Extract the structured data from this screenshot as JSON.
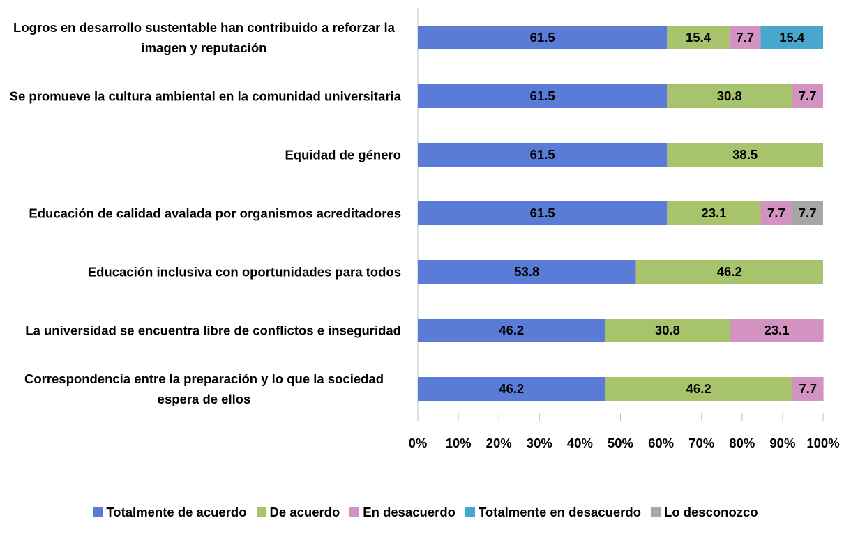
{
  "chart_data": {
    "type": "stacked_bar_horizontal",
    "categories": [
      "Logros en desarrollo sustentable han contribuido a reforzar la imagen y reputación",
      "Se promueve la cultura ambiental en la comunidad universitaria",
      "Equidad de género",
      "Educación de calidad avalada por organismos acreditadores",
      "Educación inclusiva con oportunidades para todos",
      "La universidad se encuentra libre de conflictos e inseguridad",
      "Correspondencia entre la preparación y lo que la sociedad espera de ellos"
    ],
    "series": [
      {
        "name": "Totalmente de acuerdo",
        "color": "#5b7cd6",
        "values": [
          61.5,
          61.5,
          61.5,
          61.5,
          53.8,
          46.2,
          46.2
        ]
      },
      {
        "name": "De acuerdo",
        "color": "#a7c46c",
        "values": [
          15.4,
          30.8,
          38.5,
          23.1,
          46.2,
          30.8,
          46.2
        ]
      },
      {
        "name": "En desacuerdo",
        "color": "#d393c0",
        "values": [
          7.7,
          7.7,
          null,
          7.7,
          null,
          23.1,
          7.7
        ]
      },
      {
        "name": "Totalmente en desacuerdo",
        "color": "#47a7cc",
        "values": [
          15.4,
          null,
          null,
          null,
          null,
          null,
          null
        ]
      },
      {
        "name": "Lo desconozco",
        "color": "#a6a6a6",
        "values": [
          null,
          null,
          null,
          7.7,
          null,
          null,
          null
        ]
      }
    ],
    "xlim": [
      0,
      100
    ],
    "xticks": [
      {
        "value": 0,
        "label": "0%"
      },
      {
        "value": 10,
        "label": "10%"
      },
      {
        "value": 20,
        "label": "20%"
      },
      {
        "value": 30,
        "label": "30%"
      },
      {
        "value": 40,
        "label": "40%"
      },
      {
        "value": 50,
        "label": "50%"
      },
      {
        "value": 60,
        "label": "60%"
      },
      {
        "value": 70,
        "label": "70%"
      },
      {
        "value": 80,
        "label": "80%"
      },
      {
        "value": 90,
        "label": "90%"
      },
      {
        "value": 100,
        "label": "100%"
      }
    ],
    "legend": "bottom"
  }
}
